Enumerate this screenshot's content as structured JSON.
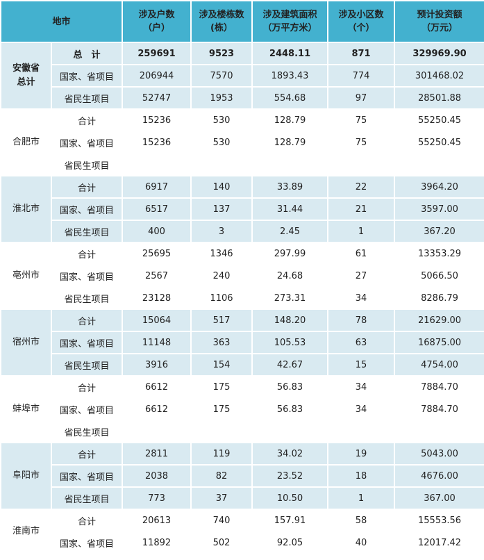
{
  "header": {
    "region": "地市",
    "households": [
      "涉及户数",
      "（户）"
    ],
    "buildings": [
      "涉及楼栋数",
      "(栋）"
    ],
    "area": [
      "涉及建筑面积",
      "（万平方米）"
    ],
    "communities": [
      "涉及小区数",
      "（个）"
    ],
    "investment": [
      "预计投资额",
      "（万元）"
    ]
  },
  "groups": [
    {
      "region": [
        "安徽省",
        "总计"
      ],
      "rows": [
        {
          "label": "总　计",
          "households": "259691",
          "buildings": "9523",
          "area": "2448.11",
          "communities": "871",
          "investment": "329969.90"
        },
        {
          "label": "国家、省项目",
          "households": "206944",
          "buildings": "7570",
          "area": "1893.43",
          "communities": "774",
          "investment": "301468.02"
        },
        {
          "label": "省民生项目",
          "households": "52747",
          "buildings": "1953",
          "area": "554.68",
          "communities": "97",
          "investment": "28501.88"
        }
      ]
    },
    {
      "region": [
        "合肥市"
      ],
      "rows": [
        {
          "label": "合计",
          "households": "15236",
          "buildings": "530",
          "area": "128.79",
          "communities": "75",
          "investment": "55250.45"
        },
        {
          "label": "国家、省项目",
          "households": "15236",
          "buildings": "530",
          "area": "128.79",
          "communities": "75",
          "investment": "55250.45"
        },
        {
          "label": "省民生项目",
          "households": "",
          "buildings": "",
          "area": "",
          "communities": "",
          "investment": ""
        }
      ]
    },
    {
      "region": [
        "淮北市"
      ],
      "rows": [
        {
          "label": "合计",
          "households": "6917",
          "buildings": "140",
          "area": "33.89",
          "communities": "22",
          "investment": "3964.20"
        },
        {
          "label": "国家、省项目",
          "households": "6517",
          "buildings": "137",
          "area": "31.44",
          "communities": "21",
          "investment": "3597.00"
        },
        {
          "label": "省民生项目",
          "households": "400",
          "buildings": "3",
          "area": "2.45",
          "communities": "1",
          "investment": "367.20"
        }
      ]
    },
    {
      "region": [
        "亳州市"
      ],
      "rows": [
        {
          "label": "合计",
          "households": "25695",
          "buildings": "1346",
          "area": "297.99",
          "communities": "61",
          "investment": "13353.29"
        },
        {
          "label": "国家、省项目",
          "households": "2567",
          "buildings": "240",
          "area": "24.68",
          "communities": "27",
          "investment": "5066.50"
        },
        {
          "label": "省民生项目",
          "households": "23128",
          "buildings": "1106",
          "area": "273.31",
          "communities": "34",
          "investment": "8286.79"
        }
      ]
    },
    {
      "region": [
        "宿州市"
      ],
      "rows": [
        {
          "label": "合计",
          "households": "15064",
          "buildings": "517",
          "area": "148.20",
          "communities": "78",
          "investment": "21629.00"
        },
        {
          "label": "国家、省项目",
          "households": "11148",
          "buildings": "363",
          "area": "105.53",
          "communities": "63",
          "investment": "16875.00"
        },
        {
          "label": "省民生项目",
          "households": "3916",
          "buildings": "154",
          "area": "42.67",
          "communities": "15",
          "investment": "4754.00"
        }
      ]
    },
    {
      "region": [
        "蚌埠市"
      ],
      "rows": [
        {
          "label": "合计",
          "households": "6612",
          "buildings": "175",
          "area": "56.83",
          "communities": "34",
          "investment": "7884.70"
        },
        {
          "label": "国家、省项目",
          "households": "6612",
          "buildings": "175",
          "area": "56.83",
          "communities": "34",
          "investment": "7884.70"
        },
        {
          "label": "省民生项目",
          "households": "",
          "buildings": "",
          "area": "",
          "communities": "",
          "investment": ""
        }
      ]
    },
    {
      "region": [
        "阜阳市"
      ],
      "rows": [
        {
          "label": "合计",
          "households": "2811",
          "buildings": "119",
          "area": "34.02",
          "communities": "19",
          "investment": "5043.00"
        },
        {
          "label": "国家、省项目",
          "households": "2038",
          "buildings": "82",
          "area": "23.52",
          "communities": "18",
          "investment": "4676.00"
        },
        {
          "label": "省民生项目",
          "households": "773",
          "buildings": "37",
          "area": "10.50",
          "communities": "1",
          "investment": "367.00"
        }
      ]
    },
    {
      "region": [
        "淮南市"
      ],
      "rows": [
        {
          "label": "合计",
          "households": "20613",
          "buildings": "740",
          "area": "157.91",
          "communities": "58",
          "investment": "15553.56"
        },
        {
          "label": "国家、省项目",
          "households": "11892",
          "buildings": "502",
          "area": "92.05",
          "communities": "40",
          "investment": "12017.42"
        }
      ]
    }
  ]
}
